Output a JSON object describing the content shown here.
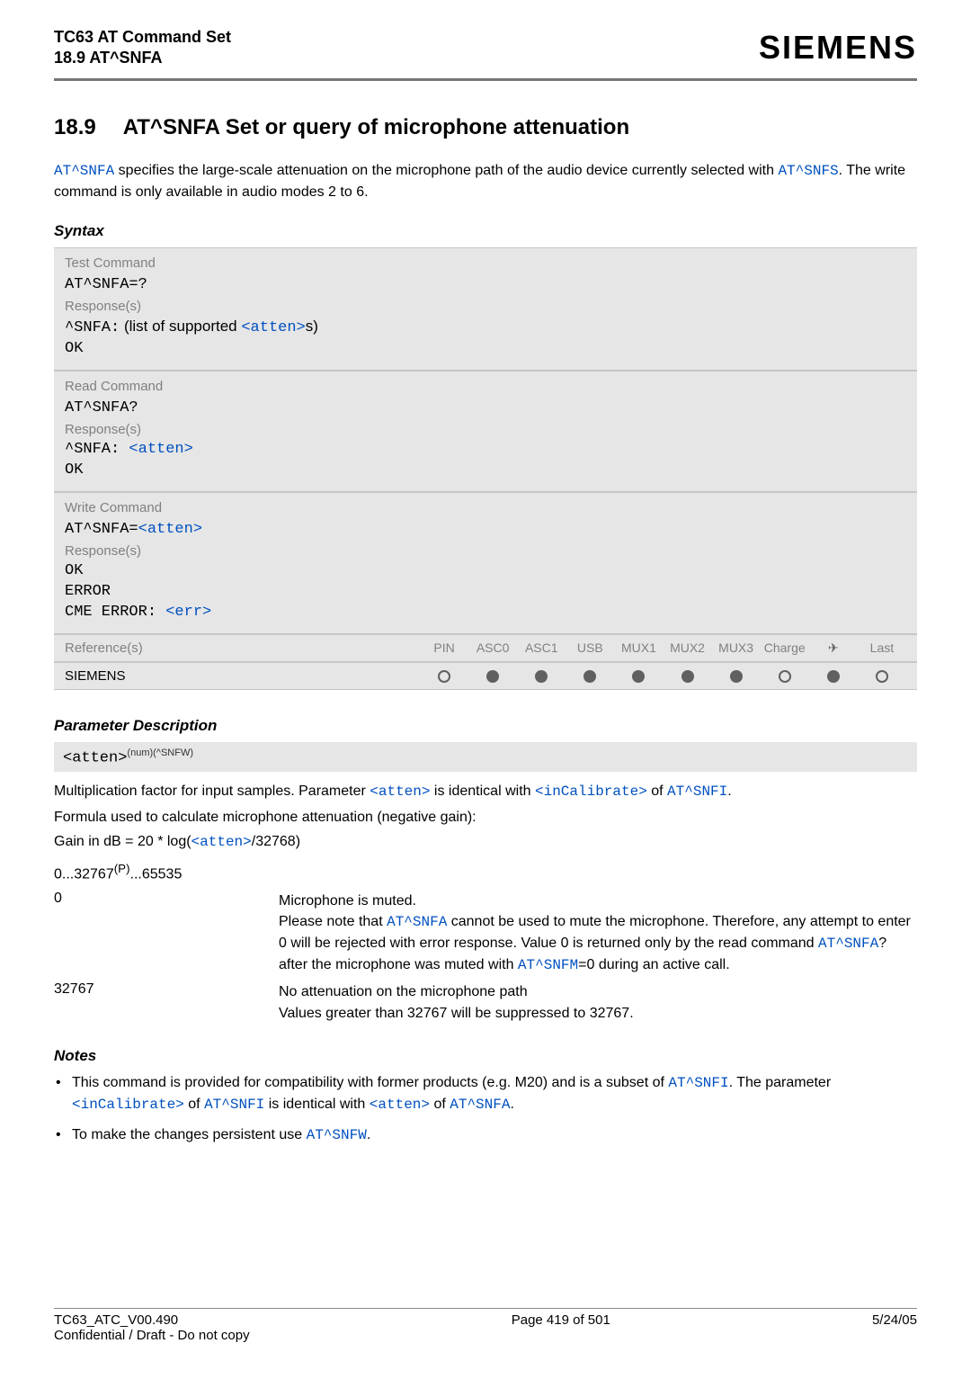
{
  "header": {
    "product": "TC63 AT Command Set",
    "section_ref": "18.9 AT^SNFA",
    "logo": "SIEMENS"
  },
  "title": {
    "number": "18.9",
    "text": "AT^SNFA   Set or query of microphone attenuation"
  },
  "intro": {
    "p1a": "AT^SNFA",
    "p1b": " specifies the large-scale attenuation on the microphone path of the audio device currently selected with ",
    "p1c": "AT^SNFS",
    "p1d": ". The write command is only available in audio modes 2 to 6."
  },
  "syntax_label": "Syntax",
  "blocks": {
    "test": {
      "label": "Test Command",
      "cmd": "AT^SNFA=?",
      "resp_label": "Response(s)",
      "resp_prefix": "^SNFA:",
      "resp_mid": " (list of supported ",
      "resp_link": "<atten>",
      "resp_suffix": "s)",
      "ok": "OK"
    },
    "read": {
      "label": "Read Command",
      "cmd": "AT^SNFA?",
      "resp_label": "Response(s)",
      "resp_prefix": "^SNFA: ",
      "resp_link": "<atten>",
      "ok": "OK"
    },
    "write": {
      "label": "Write Command",
      "cmd_prefix": "AT^SNFA=",
      "cmd_link": "<atten>",
      "resp_label": "Response(s)",
      "ok": "OK",
      "error": "ERROR",
      "cme_prefix": "CME ERROR: ",
      "cme_link": "<err>"
    }
  },
  "ref_table": {
    "ref_label": "Reference(s)",
    "cols": [
      "PIN",
      "ASC0",
      "ASC1",
      "USB",
      "MUX1",
      "MUX2",
      "MUX3",
      "Charge",
      "✈",
      "Last"
    ],
    "siemens": "SIEMENS",
    "dots": [
      "open",
      "filled",
      "filled",
      "filled",
      "filled",
      "filled",
      "filled",
      "open",
      "filled",
      "open"
    ]
  },
  "param": {
    "heading": "Parameter Description",
    "name": "<atten>",
    "super": "(num)(^SNFW)",
    "line1a": "Multiplication factor for input samples. Parameter ",
    "line1b": "<atten>",
    "line1c": " is identical with ",
    "line1d": "<inCalibrate>",
    "line1e": " of ",
    "line1f": "AT^SNFI",
    "line1g": ".",
    "line2": "Formula used to calculate microphone attenuation (negative gain):",
    "line3a": "Gain in dB = 20 * log(",
    "line3b": "<atten>",
    "line3c": "/32768)",
    "range_a": "0...32767",
    "range_sup": "(P)",
    "range_b": "...65535",
    "rows": [
      {
        "key": "0",
        "desc_parts": [
          {
            "t": "text",
            "v": "Microphone is muted."
          },
          {
            "t": "br"
          },
          {
            "t": "text",
            "v": "Please note that "
          },
          {
            "t": "linkmono",
            "v": "AT^SNFA"
          },
          {
            "t": "text",
            "v": " cannot be used to mute the microphone. Therefore, any attempt to enter 0 will be rejected with error response. Value 0 is returned only by the read command "
          },
          {
            "t": "linkmono",
            "v": "AT^SNFA"
          },
          {
            "t": "text",
            "v": "? after the microphone was muted with "
          },
          {
            "t": "linkmono",
            "v": "AT^SNFM"
          },
          {
            "t": "text",
            "v": "=0 during an active call."
          }
        ]
      },
      {
        "key": "32767",
        "desc_parts": [
          {
            "t": "text",
            "v": "No attenuation on the microphone path"
          },
          {
            "t": "br"
          },
          {
            "t": "text",
            "v": "Values greater than 32767 will be suppressed to 32767."
          }
        ]
      }
    ]
  },
  "notes": {
    "heading": "Notes",
    "items": [
      [
        {
          "t": "text",
          "v": "This command is provided for compatibility with former products (e.g. M20) and is a subset of "
        },
        {
          "t": "linkmono",
          "v": "AT^SNFI"
        },
        {
          "t": "text",
          "v": ". The parameter "
        },
        {
          "t": "linkmono",
          "v": "<inCalibrate>"
        },
        {
          "t": "text",
          "v": " of "
        },
        {
          "t": "linkmono",
          "v": "AT^SNFI"
        },
        {
          "t": "text",
          "v": " is identical with "
        },
        {
          "t": "linkmono",
          "v": "<atten>"
        },
        {
          "t": "text",
          "v": " of "
        },
        {
          "t": "linkmono",
          "v": "AT^SNFA"
        },
        {
          "t": "text",
          "v": "."
        }
      ],
      [
        {
          "t": "text",
          "v": "To make the changes persistent use "
        },
        {
          "t": "linkmono",
          "v": "AT^SNFW"
        },
        {
          "t": "text",
          "v": "."
        }
      ]
    ]
  },
  "footer": {
    "left1": "TC63_ATC_V00.490",
    "left2": "Confidential / Draft - Do not copy",
    "center": "Page 419 of 501",
    "right": "5/24/05"
  }
}
